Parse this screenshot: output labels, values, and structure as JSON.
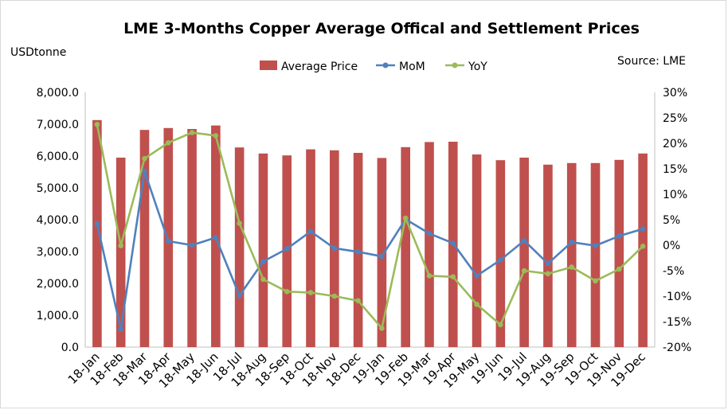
{
  "chart_data": {
    "type": "bar",
    "title": "LME 3-Months Copper  Average Offical and Settlement Prices",
    "ylabel": "USDtonne",
    "source": "Source: LME",
    "categories": [
      "18-Jan",
      "18-Feb",
      "18-Mar",
      "18-Apr",
      "18-May",
      "18-Jun",
      "18-Jul",
      "18-Aug",
      "18-Sep",
      "18-Oct",
      "18-Nov",
      "18-Dec",
      "19-Jan",
      "19-Feb",
      "19-Mar",
      "19-Apr",
      "19-May",
      "19-Jun",
      "19-Jul",
      "19-Aug",
      "19-Sep",
      "19-Oct",
      "19-Nov",
      "19-Dec"
    ],
    "series": [
      {
        "name": "Average Price",
        "type": "bar",
        "axis": "left",
        "color": "#c0504d",
        "values": [
          7130,
          5950,
          6820,
          6880,
          6850,
          6960,
          6270,
          6080,
          6020,
          6210,
          6180,
          6100,
          5940,
          6280,
          6440,
          6450,
          6050,
          5870,
          5950,
          5730,
          5780,
          5780,
          5880,
          6080
        ]
      },
      {
        "name": "MoM",
        "type": "line",
        "axis": "right",
        "color": "#4f81bd",
        "values": [
          4.2,
          -16.5,
          14.5,
          0.8,
          0.0,
          1.5,
          -9.9,
          -3.2,
          -0.7,
          2.7,
          -0.6,
          -1.3,
          -2.2,
          5.1,
          2.3,
          0.4,
          -6.0,
          -2.9,
          0.9,
          -3.6,
          0.6,
          -0.1,
          1.8,
          3.2
        ]
      },
      {
        "name": "YoY",
        "type": "line",
        "axis": "right",
        "color": "#9bbb59",
        "values": [
          23.7,
          -0.1,
          17.0,
          20.1,
          22.1,
          21.5,
          4.3,
          -6.7,
          -9.1,
          -9.3,
          -10.0,
          -10.9,
          -16.3,
          5.3,
          -6.0,
          -6.2,
          -11.6,
          -15.6,
          -5.0,
          -5.6,
          -4.3,
          -7.0,
          -4.7,
          -0.2
        ]
      }
    ],
    "y_left": {
      "min": 0,
      "max": 8000,
      "step": 1000,
      "tick_labels": [
        "0.0",
        "1,000.0",
        "2,000.0",
        "3,000.0",
        "4,000.0",
        "5,000.0",
        "6,000.0",
        "7,000.0",
        "8,000.0"
      ]
    },
    "y_right": {
      "min": -20,
      "max": 30,
      "step": 5,
      "tick_labels": [
        "-20%",
        "-15%",
        "-10%",
        "-5%",
        "0%",
        "5%",
        "10%",
        "15%",
        "20%",
        "25%",
        "30%"
      ]
    },
    "legend": {
      "position": "top",
      "items": [
        "Average Price",
        "MoM",
        "YoY"
      ]
    },
    "grid": false
  }
}
